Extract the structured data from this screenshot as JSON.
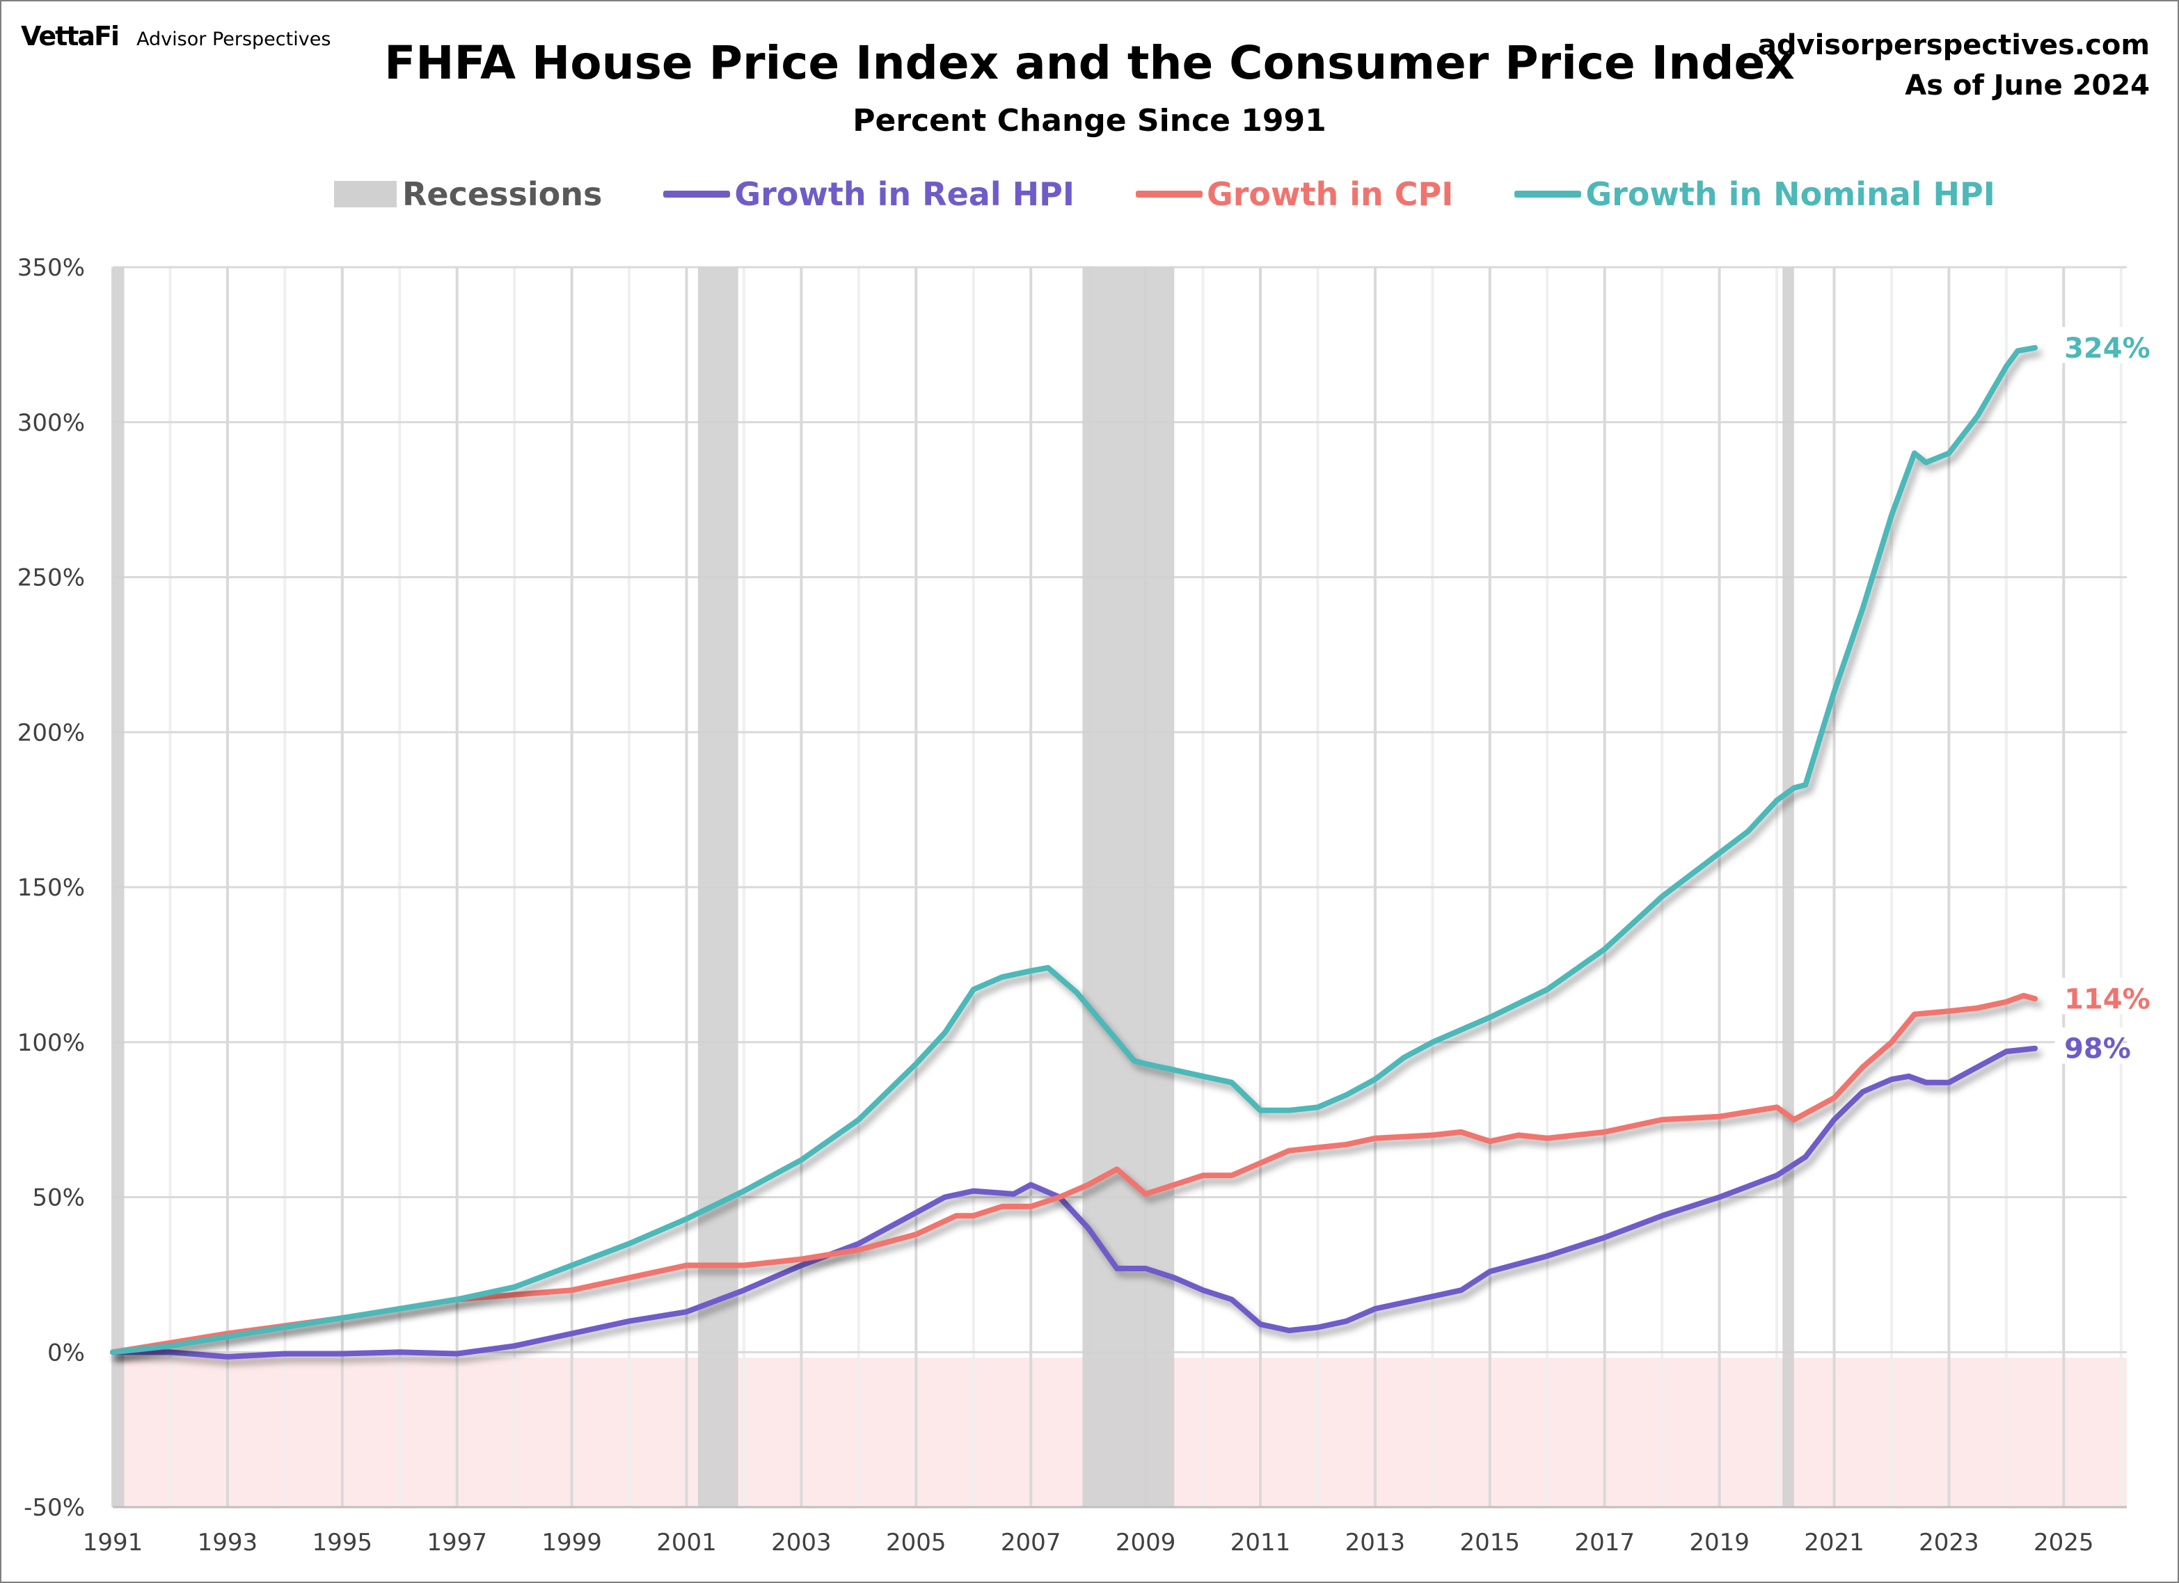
{
  "header": {
    "logo_brand": "VettaFi",
    "logo_sub": "Advisor Perspectives",
    "site": "advisorperspectives.com",
    "as_of": "As of June 2024"
  },
  "chart_data": {
    "type": "line",
    "title": "FHFA House Price Index and the Consumer Price Index",
    "subtitle": "Percent Change Since 1991",
    "xlabel": "",
    "ylabel": "",
    "xlim": [
      1991,
      2026.1
    ],
    "ylim": [
      -50,
      350
    ],
    "x_ticks": [
      "1991",
      "1993",
      "1995",
      "1997",
      "1999",
      "2001",
      "2003",
      "2005",
      "2007",
      "2009",
      "2011",
      "2013",
      "2015",
      "2017",
      "2019",
      "2021",
      "2023",
      "2025"
    ],
    "y_ticks": [
      "-50%",
      "0%",
      "50%",
      "100%",
      "150%",
      "200%",
      "250%",
      "300%",
      "350%"
    ],
    "grid": true,
    "legend_position": "top",
    "negative_region_color": "#fde9ea",
    "recessions": {
      "name": "Recessions",
      "color": "#d0d0d0",
      "periods": [
        [
          1991.0,
          1991.2
        ],
        [
          2001.2,
          2001.9
        ],
        [
          2007.9,
          2009.5
        ],
        [
          2020.1,
          2020.3
        ]
      ]
    },
    "series": [
      {
        "name": "Growth in Real HPI",
        "color": "#6f5cc8",
        "end_label": "98%",
        "x": [
          1991,
          1992,
          1993,
          1994,
          1995,
          1996,
          1997,
          1998,
          1999,
          2000,
          2001,
          2002,
          2003,
          2004,
          2005,
          2005.5,
          2006,
          2006.7,
          2007,
          2007.5,
          2008,
          2008.5,
          2009,
          2009.5,
          2010,
          2010.5,
          2011,
          2011.5,
          2012,
          2012.5,
          2013,
          2014,
          2014.5,
          2015,
          2016,
          2017,
          2018,
          2019,
          2020,
          2020.5,
          2021,
          2021.5,
          2022,
          2022.3,
          2022.6,
          2023,
          2023.5,
          2024,
          2024.5
        ],
        "y": [
          0,
          0,
          -1.5,
          -0.5,
          -0.5,
          0,
          -0.5,
          2,
          6,
          10,
          13,
          20,
          28,
          35,
          45,
          50,
          52,
          51,
          54,
          50,
          40,
          27,
          27,
          24,
          20,
          17,
          9,
          7,
          8,
          10,
          14,
          18,
          20,
          26,
          31,
          37,
          44,
          50,
          57,
          63,
          75,
          84,
          88,
          89,
          87,
          87,
          92,
          97,
          98
        ]
      },
      {
        "name": "Growth in CPI",
        "color": "#f0746e",
        "end_label": "114%",
        "x": [
          1991,
          1992,
          1993,
          1994,
          1995,
          1996,
          1997,
          1998,
          1999,
          2000,
          2001,
          2002,
          2003,
          2004,
          2005,
          2005.7,
          2006,
          2006.5,
          2007,
          2007.5,
          2008,
          2008.5,
          2009,
          2009.5,
          2010,
          2010.5,
          2011,
          2011.5,
          2012,
          2012.5,
          2013,
          2014,
          2014.5,
          2015,
          2015.5,
          2016,
          2017,
          2018,
          2019,
          2020,
          2020.3,
          2020.6,
          2021,
          2021.5,
          2022,
          2022.4,
          2023,
          2023.5,
          2024,
          2024.3,
          2024.5
        ],
        "y": [
          0,
          3,
          6,
          8.5,
          11,
          14,
          17,
          18.5,
          20,
          24,
          28,
          28,
          30,
          33,
          38,
          44,
          44,
          47,
          47,
          50,
          54,
          59,
          51,
          54,
          57,
          57,
          61,
          65,
          66,
          67,
          69,
          70,
          71,
          68,
          70,
          69,
          71,
          75,
          76,
          79,
          75,
          78,
          82,
          92,
          100,
          109,
          110,
          111,
          113,
          115,
          114
        ]
      },
      {
        "name": "Growth in Nominal HPI",
        "color": "#4db8b8",
        "end_label": "324%",
        "x": [
          1991,
          1992,
          1993,
          1994,
          1995,
          1996,
          1997,
          1998,
          1999,
          2000,
          2001,
          2002,
          2003,
          2004,
          2005,
          2005.5,
          2006,
          2006.5,
          2007,
          2007.3,
          2007.8,
          2008.3,
          2008.8,
          2009,
          2009.5,
          2010,
          2010.5,
          2011,
          2011.5,
          2012,
          2012.5,
          2013,
          2013.5,
          2014,
          2014.5,
          2015,
          2016,
          2017,
          2018,
          2019,
          2019.5,
          2020,
          2020.3,
          2020.5,
          2021,
          2021.5,
          2022,
          2022.4,
          2022.6,
          2023,
          2023.5,
          2024,
          2024.2,
          2024.5
        ],
        "y": [
          0,
          2,
          5,
          8,
          11,
          14,
          17,
          21,
          28,
          35,
          43,
          52,
          62,
          75,
          93,
          103,
          117,
          121,
          123,
          124,
          116,
          105,
          94,
          93,
          91,
          89,
          87,
          78,
          78,
          79,
          83,
          88,
          95,
          100,
          104,
          108,
          117,
          130,
          147,
          161,
          168,
          178,
          182,
          183,
          213,
          240,
          270,
          290,
          287,
          290,
          302,
          318,
          323,
          324
        ]
      }
    ]
  }
}
